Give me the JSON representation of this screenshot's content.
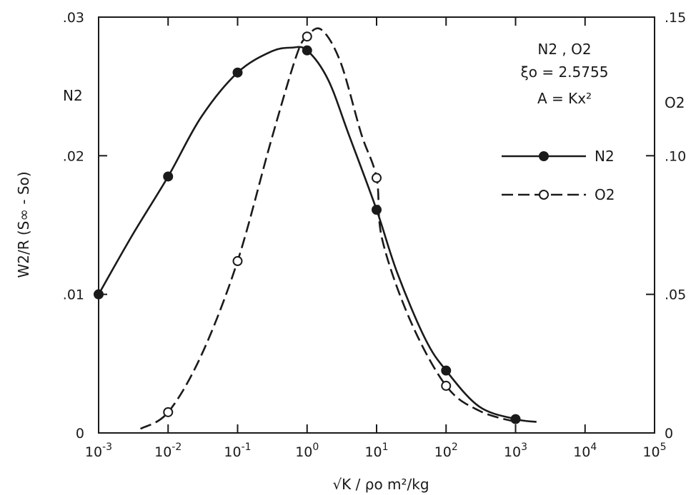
{
  "chart_data": {
    "type": "line",
    "title": "",
    "x_axis": {
      "scale": "log",
      "range": [
        0.001,
        100000
      ],
      "label": "√K / ρo m²/kg",
      "ticks": [
        {
          "value": 0.001,
          "mantissa": "10",
          "exp": "-3"
        },
        {
          "value": 0.01,
          "mantissa": "10",
          "exp": "-2"
        },
        {
          "value": 0.1,
          "mantissa": "10",
          "exp": "-1"
        },
        {
          "value": 1,
          "mantissa": "10",
          "exp": "0"
        },
        {
          "value": 10,
          "mantissa": "10",
          "exp": "1"
        },
        {
          "value": 100,
          "mantissa": "10",
          "exp": "2"
        },
        {
          "value": 1000,
          "mantissa": "10",
          "exp": "3"
        },
        {
          "value": 10000,
          "mantissa": "10",
          "exp": "4"
        },
        {
          "value": 100000,
          "mantissa": "10",
          "exp": "5"
        }
      ]
    },
    "y_axis_left": {
      "range": [
        0,
        0.03
      ],
      "label": "W2/R (S∞ - So)",
      "series_label": "N2",
      "ticks": [
        {
          "value": 0,
          "label": "0"
        },
        {
          "value": 0.01,
          "label": ".01"
        },
        {
          "value": 0.02,
          "label": ".02"
        },
        {
          "value": 0.03,
          "label": ".03"
        }
      ]
    },
    "y_axis_right": {
      "range": [
        0,
        0.15
      ],
      "series_label": "O2",
      "ticks": [
        {
          "value": 0,
          "label": "0"
        },
        {
          "value": 0.05,
          "label": ".05"
        },
        {
          "value": 0.1,
          "label": ".10"
        },
        {
          "value": 0.15,
          "label": ".15"
        }
      ]
    },
    "annotations": [
      "N2 , O2",
      "ξo = 2.5755",
      "A = Kx²"
    ],
    "legend_position": "right",
    "grid": false,
    "series": [
      {
        "name": "N2",
        "axis": "left",
        "line_style": "solid",
        "marker": "filled circle",
        "color": "#1a1a1a",
        "points": [
          {
            "x": 0.001,
            "y": 0.01
          },
          {
            "x": 0.01,
            "y": 0.0185
          },
          {
            "x": 0.1,
            "y": 0.026
          },
          {
            "x": 1,
            "y": 0.0276
          },
          {
            "x": 10,
            "y": 0.0161
          },
          {
            "x": 100,
            "y": 0.0045
          },
          {
            "x": 1000,
            "y": 0.001
          }
        ],
        "curve": [
          {
            "x": 0.001,
            "y": 0.01
          },
          {
            "x": 0.003,
            "y": 0.0142
          },
          {
            "x": 0.01,
            "y": 0.0185
          },
          {
            "x": 0.03,
            "y": 0.0228
          },
          {
            "x": 0.1,
            "y": 0.026
          },
          {
            "x": 0.3,
            "y": 0.0275
          },
          {
            "x": 0.6,
            "y": 0.0278
          },
          {
            "x": 1,
            "y": 0.0276
          },
          {
            "x": 2,
            "y": 0.0255
          },
          {
            "x": 4,
            "y": 0.0215
          },
          {
            "x": 10,
            "y": 0.0161
          },
          {
            "x": 20,
            "y": 0.0115
          },
          {
            "x": 50,
            "y": 0.0068
          },
          {
            "x": 100,
            "y": 0.0045
          },
          {
            "x": 300,
            "y": 0.0019
          },
          {
            "x": 1000,
            "y": 0.001
          },
          {
            "x": 2000,
            "y": 0.0008
          }
        ]
      },
      {
        "name": "O2",
        "axis": "right",
        "line_style": "dashed",
        "marker": "open circle",
        "color": "#1a1a1a",
        "points": [
          {
            "x": 0.01,
            "y": 0.0075
          },
          {
            "x": 0.1,
            "y": 0.062
          },
          {
            "x": 1,
            "y": 0.143
          },
          {
            "x": 10,
            "y": 0.092
          },
          {
            "x": 100,
            "y": 0.017
          }
        ],
        "curve": [
          {
            "x": 0.004,
            "y": 0.0015
          },
          {
            "x": 0.01,
            "y": 0.0075
          },
          {
            "x": 0.03,
            "y": 0.028
          },
          {
            "x": 0.1,
            "y": 0.062
          },
          {
            "x": 0.3,
            "y": 0.105
          },
          {
            "x": 0.7,
            "y": 0.136
          },
          {
            "x": 1,
            "y": 0.143
          },
          {
            "x": 1.6,
            "y": 0.1455
          },
          {
            "x": 3,
            "y": 0.134
          },
          {
            "x": 6,
            "y": 0.108
          },
          {
            "x": 10,
            "y": 0.092
          },
          {
            "x": 12,
            "y": 0.07
          },
          {
            "x": 30,
            "y": 0.041
          },
          {
            "x": 100,
            "y": 0.017
          },
          {
            "x": 300,
            "y": 0.008
          },
          {
            "x": 1000,
            "y": 0.004
          }
        ]
      }
    ]
  }
}
